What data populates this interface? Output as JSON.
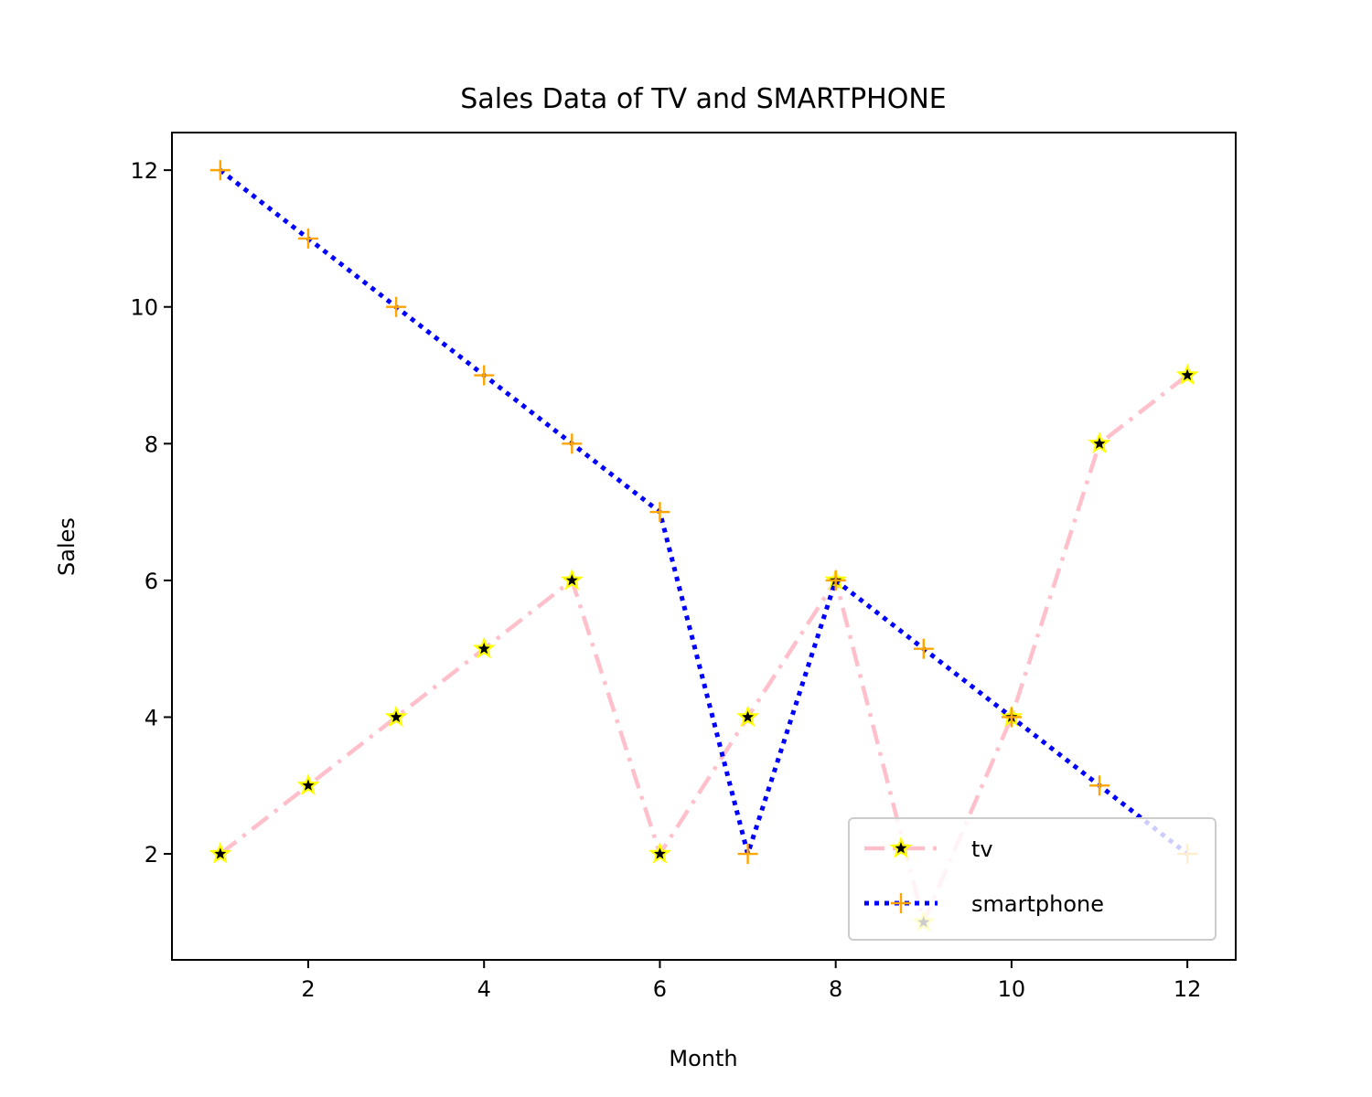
{
  "chart_data": {
    "type": "line",
    "title": "Sales Data of TV and SMARTPHONE",
    "xlabel": "Month",
    "ylabel": "Sales",
    "x": [
      1,
      2,
      3,
      4,
      5,
      6,
      7,
      8,
      9,
      10,
      11,
      12
    ],
    "xlim": [
      0.45,
      12.55
    ],
    "ylim": [
      0.45,
      12.55
    ],
    "xticks": [
      2,
      4,
      6,
      8,
      10,
      12
    ],
    "yticks": [
      2,
      4,
      6,
      8,
      10,
      12
    ],
    "grid": false,
    "legend_position": "lower-right",
    "series": [
      {
        "name": "tv",
        "values": [
          2,
          3,
          4,
          5,
          6,
          2,
          4,
          6,
          1,
          4,
          8,
          9
        ],
        "line_color": "#ffc0cb",
        "line_style": "dash-dot",
        "marker": "star",
        "marker_face": "#000000",
        "marker_edge": "#ffff00"
      },
      {
        "name": "smartphone",
        "values": [
          12,
          11,
          10,
          9,
          8,
          7,
          2,
          6,
          5,
          4,
          3,
          2
        ],
        "line_color": "#0000ff",
        "line_style": "dotted",
        "marker": "plus",
        "marker_color": "#ffa500"
      }
    ]
  }
}
